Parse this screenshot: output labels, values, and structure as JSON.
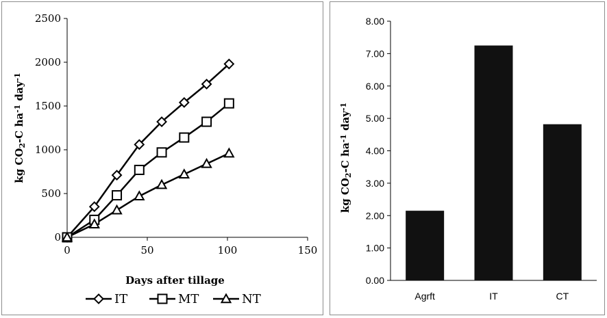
{
  "chart_data": [
    {
      "type": "line",
      "xlabel": "Days after tillage",
      "ylabel": {
        "prefix": "kg CO",
        "sub": "2",
        "mid": "-C ha",
        "sup1": "-1",
        "mid2": " day",
        "sup2": "-1"
      },
      "xlim": [
        0,
        150
      ],
      "ylim": [
        0,
        2500
      ],
      "xticks": [
        0,
        50,
        100,
        150
      ],
      "yticks": [
        0,
        500,
        1000,
        1500,
        2000,
        2500
      ],
      "x": [
        0,
        17,
        31,
        45,
        59,
        73,
        87,
        101
      ],
      "series": [
        {
          "name": "IT",
          "marker": "diamond",
          "values": [
            0,
            350,
            710,
            1060,
            1320,
            1540,
            1750,
            1980
          ]
        },
        {
          "name": "MT",
          "marker": "square",
          "values": [
            0,
            200,
            480,
            770,
            970,
            1140,
            1320,
            1530
          ]
        },
        {
          "name": "NT",
          "marker": "triangle",
          "values": [
            0,
            150,
            310,
            470,
            600,
            720,
            840,
            960
          ]
        }
      ],
      "legend": "bottom",
      "grid": false
    },
    {
      "type": "bar",
      "categories": [
        "Agrft",
        "IT",
        "CT"
      ],
      "values": [
        2.15,
        7.25,
        4.82
      ],
      "ylabel": {
        "prefix": "kg CO",
        "sub": "2",
        "mid": "-C ha",
        "sup1": "-1",
        "mid2": " day",
        "sup2": "-1"
      },
      "ylim": [
        0,
        8
      ],
      "yticks": [
        "0.00",
        "1.00",
        "2.00",
        "3.00",
        "4.00",
        "5.00",
        "6.00",
        "7.00",
        "8.00"
      ],
      "bar_color": "#111111",
      "grid": false
    }
  ]
}
